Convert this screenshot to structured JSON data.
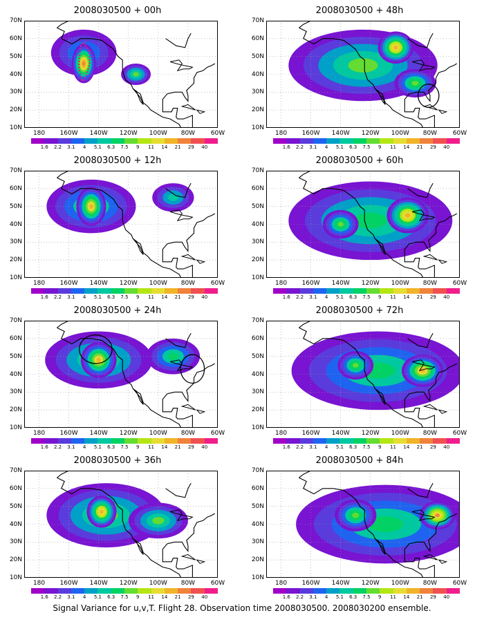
{
  "caption": "Signal Variance for u,v,T. Flight 28. Observation time 2008030500. 2008030200 ensemble.",
  "lat_labels": [
    "70N",
    "60N",
    "50N",
    "40N",
    "30N",
    "20N",
    "10N"
  ],
  "lon_labels": [
    "180",
    "160W",
    "140W",
    "120W",
    "100W",
    "80W",
    "60W"
  ],
  "colorbar": {
    "labels": [
      "1.6",
      "2.2",
      "3.1",
      "4",
      "5.1",
      "6.3",
      "7.5",
      "9",
      "11",
      "14",
      "21",
      "29",
      "40"
    ],
    "colors": [
      "#a000c8",
      "#7814d2",
      "#5a3cdc",
      "#1e64f0",
      "#00a0c8",
      "#00c8a0",
      "#00d264",
      "#64dc32",
      "#b4e614",
      "#e6dc32",
      "#f0b428",
      "#f0823c",
      "#f05050",
      "#f01e8c"
    ]
  },
  "panels": [
    {
      "title": "2008030500 + 00h",
      "blobs": [
        [
          150,
          52,
          22,
          13,
          0.35
        ],
        [
          150,
          46,
          8,
          11,
          0.85
        ],
        [
          115,
          40,
          10,
          6,
          0.5
        ]
      ],
      "ellipses": [],
      "track": true
    },
    {
      "title": "2008030500 + 12h",
      "blobs": [
        [
          145,
          50,
          30,
          15,
          0.45
        ],
        [
          145,
          50,
          10,
          11,
          0.75
        ],
        [
          90,
          55,
          14,
          8,
          0.4
        ]
      ],
      "ellipses": [],
      "track": false
    },
    {
      "title": "2008030500 + 24h",
      "blobs": [
        [
          140,
          48,
          36,
          16,
          0.5
        ],
        [
          140,
          48,
          12,
          10,
          0.75
        ],
        [
          90,
          50,
          18,
          10,
          0.45
        ]
      ],
      "ellipses": [
        {
          "lon": 142,
          "lat": 54,
          "rx": 11,
          "ry": 8
        },
        {
          "lon": 77,
          "lat": 43,
          "rx": 8,
          "ry": 8
        }
      ],
      "track": false
    },
    {
      "title": "2008030500 + 36h",
      "blobs": [
        [
          135,
          45,
          40,
          18,
          0.5
        ],
        [
          138,
          47,
          10,
          9,
          0.78
        ],
        [
          100,
          42,
          20,
          10,
          0.5
        ]
      ],
      "ellipses": [],
      "track": false
    },
    {
      "title": "2008030500 + 48h",
      "blobs": [
        [
          125,
          45,
          50,
          20,
          0.5
        ],
        [
          103,
          55,
          12,
          9,
          0.78
        ],
        [
          90,
          35,
          14,
          8,
          0.55
        ]
      ],
      "ellipses": [
        {
          "lon": 81,
          "lat": 28,
          "rx": 7,
          "ry": 6.5
        }
      ],
      "track": false
    },
    {
      "title": "2008030500 + 60h",
      "blobs": [
        [
          120,
          42,
          55,
          22,
          0.48
        ],
        [
          95,
          45,
          14,
          10,
          0.78
        ],
        [
          140,
          40,
          12,
          8,
          0.55
        ]
      ],
      "ellipses": [],
      "track": false
    },
    {
      "title": "2008030500 + 72h",
      "blobs": [
        [
          115,
          42,
          58,
          22,
          0.45
        ],
        [
          85,
          42,
          14,
          9,
          0.76
        ],
        [
          130,
          45,
          12,
          8,
          0.55
        ]
      ],
      "ellipses": [],
      "track": false
    },
    {
      "title": "2008030500 + 84h",
      "blobs": [
        [
          110,
          40,
          60,
          22,
          0.45
        ],
        [
          75,
          45,
          12,
          8,
          0.8
        ],
        [
          130,
          45,
          14,
          9,
          0.55
        ]
      ],
      "ellipses": [],
      "track": false
    }
  ]
}
